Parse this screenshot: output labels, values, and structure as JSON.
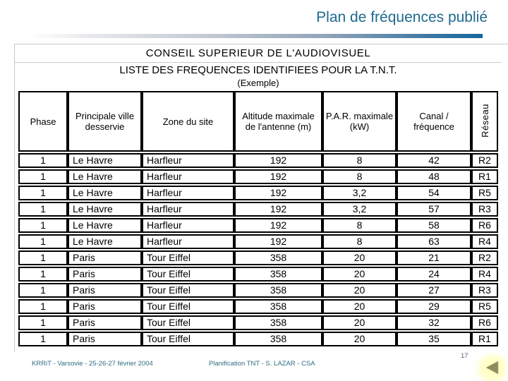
{
  "slide": {
    "title": "Plan de fréquences publié",
    "footer": {
      "left": "KRRiT - Varsovie - 25-26-27 février 2004",
      "center": "Planification TNT - S. LAZAR - CSA",
      "page_number": "17"
    },
    "nav": {
      "back_icon": "left-pointing-triangle"
    }
  },
  "table": {
    "title_line1": "CONSEIL SUPERIEUR DE L'AUDIOVISUEL",
    "title_line2": "LISTE DES FREQUENCES IDENTIFIEES POUR LA T.N.T.",
    "title_line3": "(Exemple)",
    "columns": [
      "Phase",
      "Principale ville desservie",
      "Zone du site",
      "Altitude maximale de l'antenne (m)",
      "P.A.R. maximale (kW)",
      "Canal / fréquence",
      "Réseau"
    ],
    "rows": [
      [
        "1",
        "Le Havre",
        "Harfleur",
        "192",
        "8",
        "42",
        "R2"
      ],
      [
        "1",
        "Le Havre",
        "Harfleur",
        "192",
        "8",
        "48",
        "R1"
      ],
      [
        "1",
        "Le Havre",
        "Harfleur",
        "192",
        "3,2",
        "54",
        "R5"
      ],
      [
        "1",
        "Le Havre",
        "Harfleur",
        "192",
        "3,2",
        "57",
        "R3"
      ],
      [
        "1",
        "Le Havre",
        "Harfleur",
        "192",
        "8",
        "58",
        "R6"
      ],
      [
        "1",
        "Le Havre",
        "Harfleur",
        "192",
        "8",
        "63",
        "R4"
      ],
      [
        "1",
        "Paris",
        "Tour Eiffel",
        "358",
        "20",
        "21",
        "R2"
      ],
      [
        "1",
        "Paris",
        "Tour Eiffel",
        "358",
        "20",
        "24",
        "R4"
      ],
      [
        "1",
        "Paris",
        "Tour Eiffel",
        "358",
        "20",
        "27",
        "R3"
      ],
      [
        "1",
        "Paris",
        "Tour Eiffel",
        "358",
        "20",
        "29",
        "R5"
      ],
      [
        "1",
        "Paris",
        "Tour Eiffel",
        "358",
        "20",
        "32",
        "R6"
      ],
      [
        "1",
        "Paris",
        "Tour Eiffel",
        "358",
        "20",
        "35",
        "R1"
      ]
    ]
  },
  "colors": {
    "title_text": "#1e6a8e",
    "accent_bar_end": "#1566a0",
    "footer_text": "#2e6d80",
    "table_border": "#000000",
    "placeholder_border": "#c9c9c9",
    "nav_arrow": "#8e8b5e",
    "nav_glow": "#ffffc0"
  }
}
